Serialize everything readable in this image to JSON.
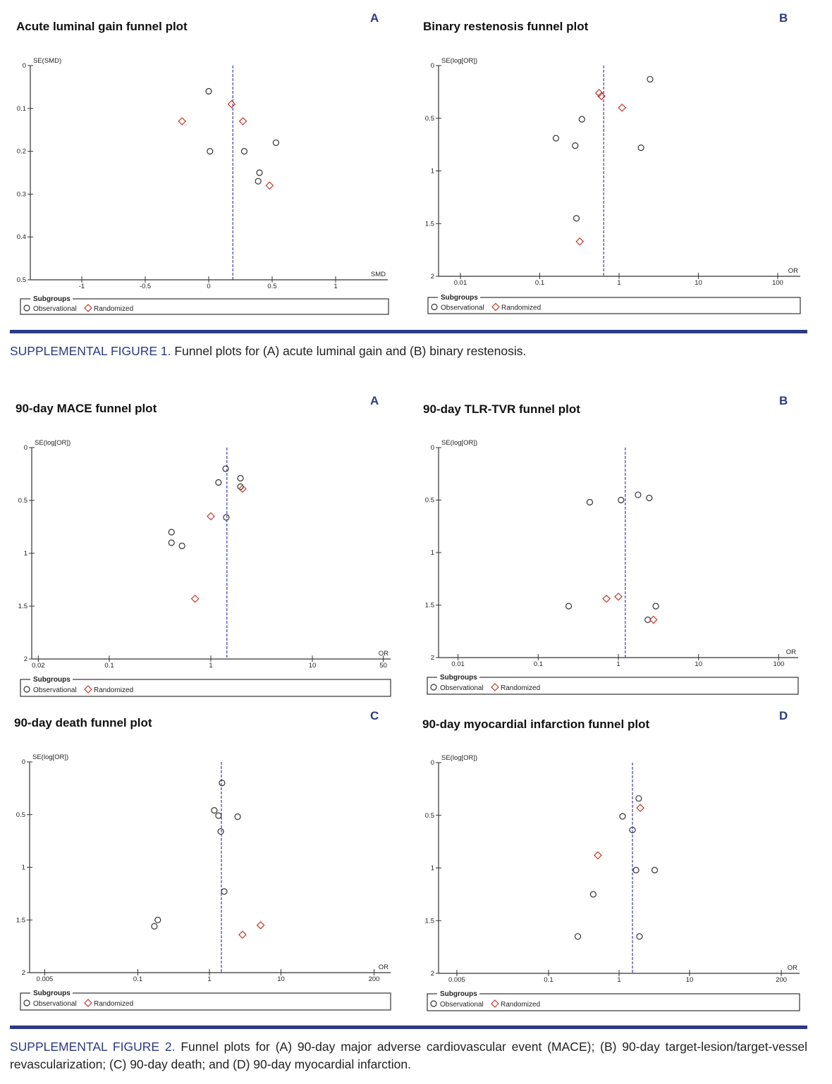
{
  "colors": {
    "accent": "#2b3a85",
    "observational": "#333333",
    "randomized": "#c0392b",
    "pooled_line": "#3b3bb0"
  },
  "figure1": {
    "label": "SUPPLEMENTAL FIGURE 1.",
    "text": " Funnel plots for (A) acute luminal gain and (B) binary restenosis."
  },
  "figure2": {
    "label": "SUPPLEMENTAL FIGURE 2.",
    "text": " Funnel plots for (A) 90-day major adverse cardiovascular event (MACE); (B) 90-day target-lesion/target-vessel revascularization; (C) 90-day death; and (D) 90-day myocardial infarction."
  },
  "chart_data": [
    {
      "id": "f1a",
      "panel": "A",
      "type": "scatter",
      "title": "Acute luminal gain funnel plot",
      "xlabel": "SMD",
      "ylabel": "SE(SMD)",
      "xscale": "linear",
      "yreversed": true,
      "ylim": [
        0,
        0.5
      ],
      "yticks": [
        0,
        0.1,
        0.2,
        0.3,
        0.4,
        0.5
      ],
      "yticklabels": [
        "0",
        "0.1",
        "0.2",
        "0.3",
        "0.4",
        "0.5"
      ],
      "xticks": [
        -1,
        -0.5,
        0,
        0.5,
        1
      ],
      "xticklabels": [
        "-1",
        "-0.5",
        "0",
        "0.5",
        "1"
      ],
      "pooled_estimate": 0.19,
      "legend": {
        "title": "Subgroups",
        "placement": "bottom"
      },
      "series": [
        {
          "name": "Observational",
          "marker": "circle",
          "points": [
            [
              0,
              0.06
            ],
            [
              0.01,
              0.2
            ],
            [
              0.28,
              0.2
            ],
            [
              0.53,
              0.18
            ],
            [
              0.4,
              0.25
            ],
            [
              0.39,
              0.27
            ]
          ]
        },
        {
          "name": "Randomized",
          "marker": "diamond",
          "points": [
            [
              -0.21,
              0.13
            ],
            [
              0.18,
              0.09
            ],
            [
              0.27,
              0.13
            ],
            [
              0.48,
              0.28
            ]
          ]
        }
      ]
    },
    {
      "id": "f1b",
      "panel": "B",
      "type": "scatter",
      "title": "Binary restenosis funnel plot",
      "xlabel": "OR",
      "ylabel": "SE(log[OR])",
      "xscale": "log",
      "yreversed": true,
      "ylim": [
        0,
        2
      ],
      "yticks": [
        0,
        0.5,
        1,
        1.5,
        2
      ],
      "yticklabels": [
        "0",
        "0.5",
        "1",
        "1.5",
        "2"
      ],
      "xticks": [
        0.01,
        0.1,
        1,
        10,
        100
      ],
      "xticklabels": [
        "0.01",
        "0.1",
        "1",
        "10",
        "100"
      ],
      "pooled_estimate": 0.64,
      "legend": {
        "title": "Subgroups",
        "placement": "bottom"
      },
      "series": [
        {
          "name": "Observational",
          "marker": "circle",
          "points": [
            [
              2.46,
              0.13
            ],
            [
              0.34,
              0.51
            ],
            [
              0.16,
              0.69
            ],
            [
              0.28,
              0.76
            ],
            [
              1.89,
              0.78
            ],
            [
              0.29,
              1.45
            ]
          ]
        },
        {
          "name": "Randomized",
          "marker": "diamond",
          "points": [
            [
              0.56,
              0.26
            ],
            [
              0.6,
              0.29
            ],
            [
              1.09,
              0.4
            ],
            [
              0.32,
              1.67
            ]
          ]
        }
      ]
    },
    {
      "id": "f2a",
      "panel": "A",
      "type": "scatter",
      "title": "90-day MACE funnel plot",
      "xlabel": "OR",
      "ylabel": "SE(log[OR])",
      "xscale": "log",
      "yreversed": true,
      "ylim": [
        0,
        2
      ],
      "yticks": [
        0,
        0.5,
        1,
        1.5,
        2
      ],
      "yticklabels": [
        "0",
        "0.5",
        "1",
        "1.5",
        "2"
      ],
      "xticks": [
        0.02,
        0.1,
        1,
        10,
        50
      ],
      "xticklabels": [
        "0.02",
        "0.1",
        "1",
        "10",
        "50"
      ],
      "pooled_estimate": 1.44,
      "legend": {
        "title": "Subgroups",
        "placement": "bottom"
      },
      "series": [
        {
          "name": "Observational",
          "marker": "circle",
          "points": [
            [
              1.4,
              0.2
            ],
            [
              1.19,
              0.33
            ],
            [
              1.96,
              0.29
            ],
            [
              1.96,
              0.37
            ],
            [
              1.42,
              0.66
            ],
            [
              0.41,
              0.8
            ],
            [
              0.41,
              0.9
            ],
            [
              0.52,
              0.93
            ]
          ]
        },
        {
          "name": "Randomized",
          "marker": "diamond",
          "points": [
            [
              2.05,
              0.39
            ],
            [
              1.0,
              0.65
            ],
            [
              0.7,
              1.43
            ]
          ]
        }
      ]
    },
    {
      "id": "f2b",
      "panel": "B",
      "type": "scatter",
      "title": "90-day TLR-TVR funnel plot",
      "xlabel": "OR",
      "ylabel": "SE(log[OR])",
      "xscale": "log",
      "yreversed": true,
      "ylim": [
        0,
        2
      ],
      "yticks": [
        0,
        0.5,
        1,
        1.5,
        2
      ],
      "yticklabels": [
        "0",
        "0.5",
        "1",
        "1.5",
        "2"
      ],
      "xticks": [
        0.01,
        0.1,
        1,
        10,
        100
      ],
      "xticklabels": [
        "0.01",
        "0.1",
        "1",
        "10",
        "100"
      ],
      "pooled_estimate": 1.22,
      "legend": {
        "title": "Subgroups",
        "placement": "bottom"
      },
      "series": [
        {
          "name": "Observational",
          "marker": "circle",
          "points": [
            [
              0.44,
              0.52
            ],
            [
              1.08,
              0.5
            ],
            [
              1.76,
              0.45
            ],
            [
              2.43,
              0.48
            ],
            [
              0.24,
              1.51
            ],
            [
              2.93,
              1.51
            ],
            [
              2.33,
              1.64
            ]
          ]
        },
        {
          "name": "Randomized",
          "marker": "diamond",
          "points": [
            [
              0.71,
              1.44
            ],
            [
              1.0,
              1.42
            ],
            [
              2.74,
              1.64
            ]
          ]
        }
      ]
    },
    {
      "id": "f2c",
      "panel": "C",
      "type": "scatter",
      "title": "90-day death funnel plot",
      "xlabel": "OR",
      "ylabel": "SE(log[OR])",
      "xscale": "log",
      "yreversed": true,
      "ylim": [
        0,
        2
      ],
      "yticks": [
        0,
        0.5,
        1,
        1.5,
        2
      ],
      "yticklabels": [
        "0",
        "0.5",
        "1",
        "1.5",
        "2"
      ],
      "xticks": [
        0.005,
        0.1,
        1,
        10,
        200
      ],
      "xticklabels": [
        "0.005",
        "0.1",
        "1",
        "10",
        "200"
      ],
      "pooled_estimate": 1.47,
      "legend": {
        "title": "Subgroups",
        "placement": "bottom"
      },
      "series": [
        {
          "name": "Observational",
          "marker": "circle",
          "points": [
            [
              1.5,
              0.2
            ],
            [
              1.17,
              0.46
            ],
            [
              1.34,
              0.51
            ],
            [
              2.48,
              0.52
            ],
            [
              1.44,
              0.66
            ],
            [
              1.61,
              1.23
            ],
            [
              0.19,
              1.5
            ],
            [
              0.17,
              1.56
            ]
          ]
        },
        {
          "name": "Randomized",
          "marker": "diamond",
          "points": [
            [
              5.2,
              1.55
            ],
            [
              2.9,
              1.64
            ]
          ]
        }
      ]
    },
    {
      "id": "f2d",
      "panel": "D",
      "type": "scatter",
      "title": "90-day myocardial infarction funnel plot",
      "xlabel": "OR",
      "ylabel": "SE(log[OR])",
      "xscale": "log",
      "yreversed": true,
      "ylim": [
        0,
        2
      ],
      "yticks": [
        0,
        0.5,
        1,
        1.5,
        2
      ],
      "yticklabels": [
        "0",
        "0.5",
        "1",
        "1.5",
        "2"
      ],
      "xticks": [
        0.005,
        0.1,
        1,
        10,
        200
      ],
      "xticklabels": [
        "0.005",
        "0.1",
        "1",
        "10",
        "200"
      ],
      "pooled_estimate": 1.55,
      "legend": {
        "title": "Subgroups",
        "placement": "bottom"
      },
      "series": [
        {
          "name": "Observational",
          "marker": "circle",
          "points": [
            [
              1.9,
              0.34
            ],
            [
              1.12,
              0.51
            ],
            [
              1.55,
              0.64
            ],
            [
              1.74,
              1.02
            ],
            [
              3.2,
              1.02
            ],
            [
              0.43,
              1.25
            ],
            [
              0.26,
              1.65
            ],
            [
              1.95,
              1.65
            ]
          ]
        },
        {
          "name": "Randomized",
          "marker": "diamond",
          "points": [
            [
              2.0,
              0.43
            ],
            [
              0.5,
              0.88
            ]
          ]
        }
      ]
    }
  ]
}
